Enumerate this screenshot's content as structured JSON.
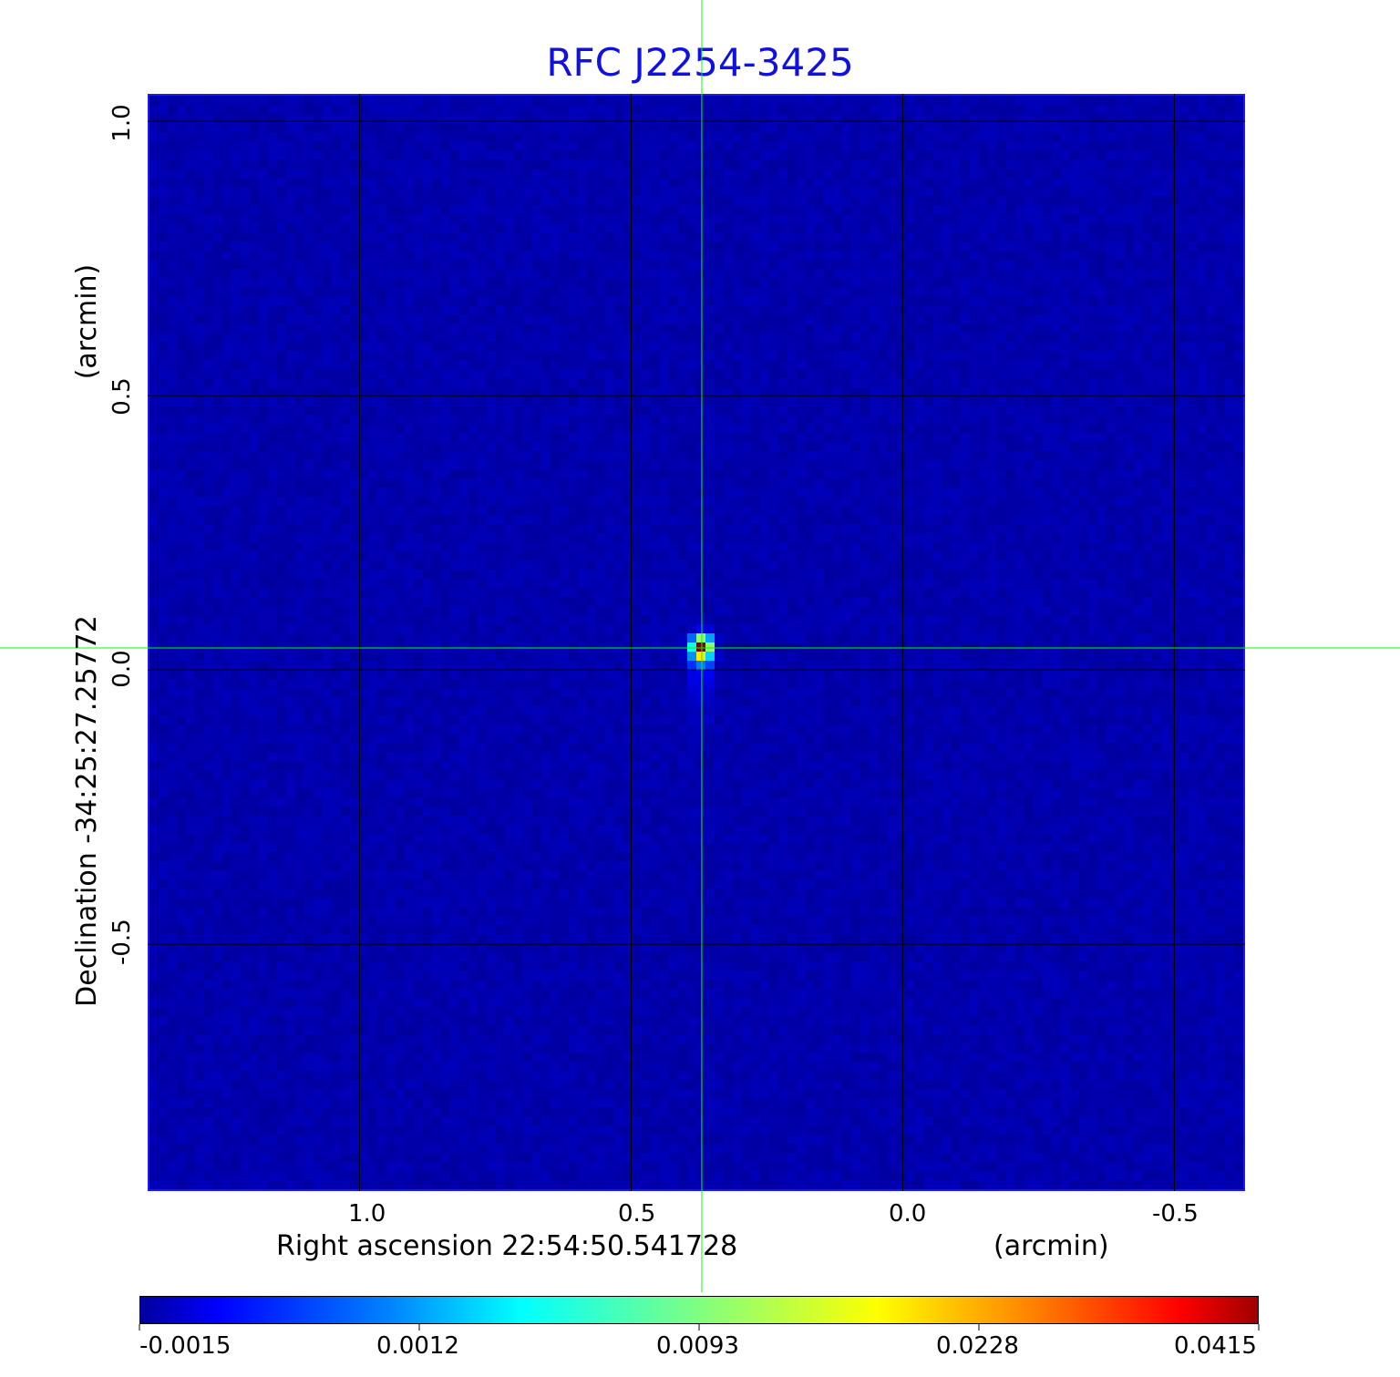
{
  "chart_data": {
    "type": "heatmap",
    "title": "RFC J2254-3425",
    "xlabel": "Right ascension  22:54:50.541728",
    "xunit": "(arcmin)",
    "ylabel": "Declination  -34:25:27.25772",
    "yunit": "(arcmin)",
    "xlim": [
      1.39,
      -0.63
    ],
    "ylim": [
      -0.95,
      1.05
    ],
    "xticks": [
      {
        "v": 1.0,
        "label": "1.0"
      },
      {
        "v": 0.5,
        "label": "0.5"
      },
      {
        "v": 0.0,
        "label": "0.0"
      },
      {
        "v": -0.5,
        "label": "-0.5"
      }
    ],
    "yticks": [
      {
        "v": 1.0,
        "label": "1.0"
      },
      {
        "v": 0.5,
        "label": "0.5"
      },
      {
        "v": 0.0,
        "label": "0.0"
      },
      {
        "v": -0.5,
        "label": "-0.5"
      }
    ],
    "grid": true,
    "colormap": "jet",
    "colorbar": {
      "position": "bottom",
      "ticks": [
        "-0.0015",
        "0.0012",
        "0.0093",
        "0.0228",
        "0.0415"
      ],
      "min": -0.0015,
      "max": 0.0415
    },
    "peak": {
      "x": 0.37,
      "y": 0.04,
      "value": 0.0415
    },
    "crosshair": {
      "x": 0.37,
      "y": 0.04,
      "color": "#00ff00"
    },
    "background_color": "#1a6cff",
    "title_color": "#1010e0"
  }
}
